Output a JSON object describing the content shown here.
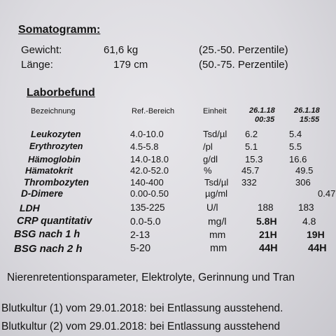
{
  "somatogramm": {
    "title": "Somatogramm:",
    "rows": [
      {
        "label": "Gewicht:",
        "value": "61,6 kg",
        "perc": "(25.-50. Perzentile)"
      },
      {
        "label": "Länge:",
        "value": "179 cm",
        "perc": "(50.-75. Perzentile)"
      }
    ]
  },
  "labor": {
    "title": "Laborbefund",
    "headers": {
      "name": "Bezeichnung",
      "ref": "Ref.-Bereich",
      "unit": "Einheit",
      "date1": "26.1.18",
      "time1": "00:35",
      "date2": "26.1.18",
      "time2": "15:55"
    },
    "rows": [
      {
        "name": "Leukozyten",
        "ref": "4.0-10.0",
        "unit": "Tsd/µl",
        "v1": "6.2",
        "v2": "5.4",
        "bold": false
      },
      {
        "name": "Erythrozyten",
        "ref": "4.5-5.8",
        "unit": "/pl",
        "v1": "5.1",
        "v2": "5.5",
        "bold": false
      },
      {
        "name": "Hämoglobin",
        "ref": "14.0-18.0",
        "unit": "g/dl",
        "v1": "15.3",
        "v2": "16.6",
        "bold": false
      },
      {
        "name": "Hämatokrit",
        "ref": "42.0-52.0",
        "unit": "%",
        "v1": "45.7",
        "v2": "49.5",
        "bold": false
      },
      {
        "name": "Thrombozyten",
        "ref": "140-400",
        "unit": "Tsd/µl",
        "v1": "332",
        "v2": "306",
        "bold": false
      },
      {
        "name": "D-Dimere",
        "ref": "0.00-0.50",
        "unit": "µg/ml",
        "v1": "",
        "v2": "0.47",
        "bold": false
      },
      {
        "name": "LDH",
        "ref": "135-225",
        "unit": "U/l",
        "v1": "188",
        "v2": "183",
        "bold": false
      },
      {
        "name": "CRP quantitativ",
        "ref": "0.0-5.0",
        "unit": "mg/l",
        "v1": "5.8H",
        "v2": "4.8",
        "bold1": true,
        "bold2": false
      },
      {
        "name": "BSG nach 1 h",
        "ref": "2-13",
        "unit": "mm",
        "v1": "21H",
        "v2": "19H",
        "bold1": true,
        "bold2": true
      },
      {
        "name": "BSG nach 2 h",
        "ref": "5-20",
        "unit": "mm",
        "v1": "44H",
        "v2": "44H",
        "bold1": true,
        "bold2": true
      }
    ]
  },
  "footer": {
    "line1": "Nierenretentionsparameter, Elektrolyte, Gerinnung und Tran",
    "line2": "Blutkultur (1) vom 29.01.2018: bei Entlassung ausstehend.",
    "line3": "Blutkultur (2) vom 29.01.2018: bei Entlassung ausstehend"
  }
}
